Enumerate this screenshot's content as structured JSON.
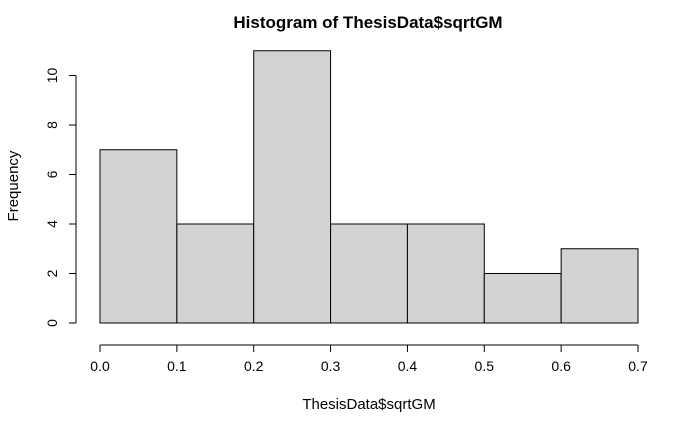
{
  "chart_data": {
    "type": "bar",
    "title": "Histogram of ThesisData$sqrtGM",
    "xlabel": "ThesisData$sqrtGM",
    "ylabel": "Frequency",
    "bins": [
      {
        "from": 0.0,
        "to": 0.1,
        "count": 7
      },
      {
        "from": 0.1,
        "to": 0.2,
        "count": 4
      },
      {
        "from": 0.2,
        "to": 0.3,
        "count": 11
      },
      {
        "from": 0.3,
        "to": 0.4,
        "count": 4
      },
      {
        "from": 0.4,
        "to": 0.5,
        "count": 4
      },
      {
        "from": 0.5,
        "to": 0.6,
        "count": 2
      },
      {
        "from": 0.6,
        "to": 0.7,
        "count": 3
      }
    ],
    "xlim": [
      0.0,
      0.7
    ],
    "ylim": [
      0,
      11
    ],
    "x_ticks": [
      "0.0",
      "0.1",
      "0.2",
      "0.3",
      "0.4",
      "0.5",
      "0.6",
      "0.7"
    ],
    "y_ticks": [
      "0",
      "2",
      "4",
      "6",
      "8",
      "10"
    ],
    "grid": false,
    "colors": {
      "bar_fill": "#d3d3d3",
      "bar_stroke": "#000000"
    }
  }
}
